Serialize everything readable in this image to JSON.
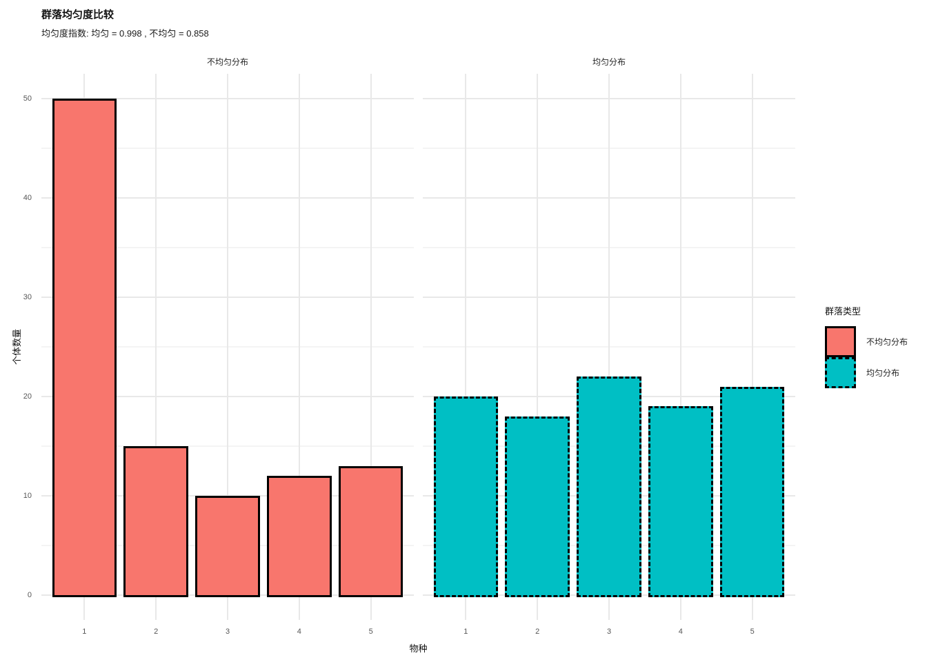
{
  "title": "群落均匀度比较",
  "subtitle": "均匀度指数: 均匀 = 0.998 , 不均匀 = 0.858",
  "legend": {
    "title": "群落类型",
    "items": [
      {
        "label": "不均匀分布",
        "fill": "#F8766D",
        "border_style": "solid"
      },
      {
        "label": "均匀分布",
        "fill": "#00BFC4",
        "border_style": "dashed"
      }
    ]
  },
  "colors": {
    "uneven_fill": "#F8766D",
    "even_fill": "#00BFC4",
    "bar_outline": "#000000",
    "grid_major": "#e8e8e8",
    "grid_minor": "#f4f4f4",
    "background": "#ffffff"
  },
  "chart_data": {
    "type": "bar",
    "title": "群落均匀度比较",
    "subtitle": "均匀度指数: 均匀 = 0.998 , 不均匀 = 0.858",
    "xlabel": "物种",
    "ylabel": "个体数量",
    "categories": [
      "1",
      "2",
      "3",
      "4",
      "5"
    ],
    "facets": [
      {
        "label": "不均匀分布",
        "values": [
          50,
          15,
          10,
          12,
          13
        ],
        "fill": "#F8766D",
        "outline": "solid"
      },
      {
        "label": "均匀分布",
        "values": [
          20,
          18,
          22,
          19,
          21
        ],
        "fill": "#00BFC4",
        "outline": "dashed"
      }
    ],
    "ylim": [
      0,
      50
    ],
    "yticks": [
      0,
      10,
      20,
      30,
      40,
      50
    ],
    "yticks_minor": [
      5,
      15,
      25,
      35,
      45
    ],
    "grid": true,
    "legend_position": "right",
    "legend_title": "群落类型"
  }
}
